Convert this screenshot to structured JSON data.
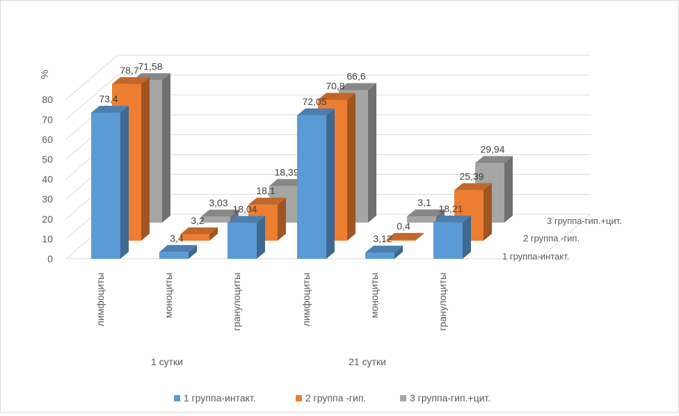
{
  "chart_data": {
    "type": "bar",
    "subtype": "3d-clustered-depth",
    "ylabel": "%",
    "ylim": [
      0,
      80
    ],
    "yticks": [
      "0",
      "10",
      "20",
      "30",
      "40",
      "50",
      "60",
      "70",
      "80"
    ],
    "groups": [
      {
        "label": "1 сутки",
        "categories": [
          "лимфоциты",
          "моноциты",
          "гранулоциты"
        ]
      },
      {
        "label": "21 сутки",
        "categories": [
          "лимфоциты",
          "моноциты",
          "гранулоциты"
        ]
      }
    ],
    "series": [
      {
        "name": "1 группа-интакт.",
        "color": "#5b9bd5",
        "values": [
          73.4,
          3.4,
          18.04,
          72.05,
          3.12,
          18.21
        ],
        "labels": [
          "73,4",
          "3,4",
          "18,04",
          "72,05",
          "3,12",
          "18,21"
        ]
      },
      {
        "name": "2 группа -гип.",
        "color": "#ed7d31",
        "values": [
          78.7,
          3.2,
          18.1,
          70.8,
          0.4,
          25.39
        ],
        "labels": [
          "78,7",
          "3,2",
          "18,1",
          "70,8",
          "0,4",
          "25,39"
        ]
      },
      {
        "name": "3 группа-гип.+цит.",
        "color": "#a5a5a5",
        "values": [
          71.58,
          3.03,
          18.39,
          66.6,
          3.1,
          29.94
        ],
        "labels": [
          "71,58",
          "3,03",
          "18,39",
          "66,6",
          "3,1",
          "29,94"
        ]
      }
    ],
    "legend_position": "bottom",
    "depth_axis_labels": [
      "1 группа-интакт.",
      "2 группа -гип.",
      "3 группа-гип.+цит."
    ]
  }
}
